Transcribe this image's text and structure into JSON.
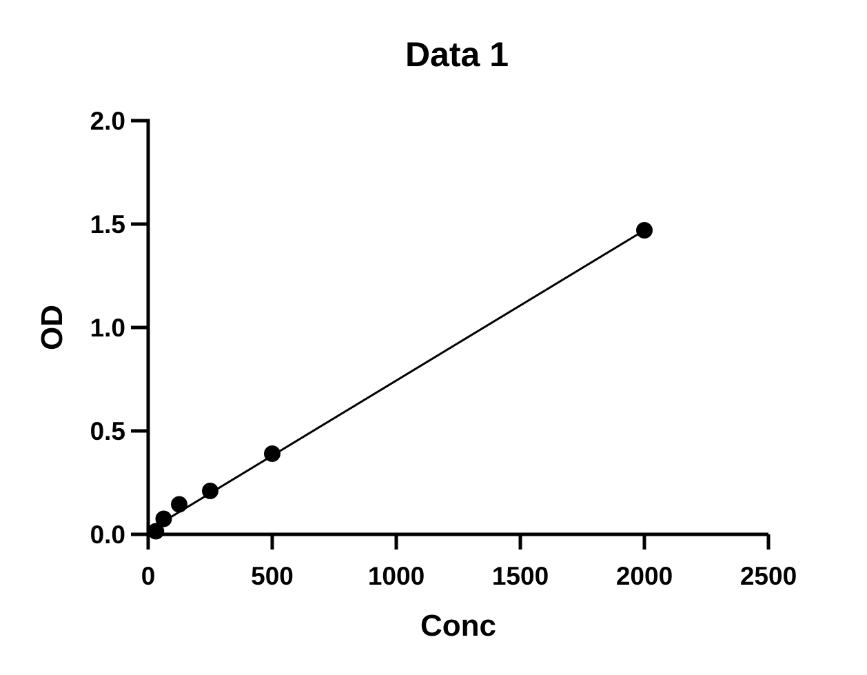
{
  "chart_data": {
    "type": "scatter",
    "title": "Data 1",
    "xlabel": "Conc",
    "ylabel": "OD",
    "xlim": [
      0,
      2500
    ],
    "ylim": [
      0,
      2.0
    ],
    "x_ticks": [
      0,
      500,
      1000,
      1500,
      2000,
      2500
    ],
    "x_tick_labels": [
      "0",
      "500",
      "1000",
      "1500",
      "2000",
      "2500"
    ],
    "y_ticks": [
      0,
      0.5,
      1.0,
      1.5,
      2.0
    ],
    "y_tick_labels": [
      "0.0",
      "0.5",
      "1.0",
      "1.5",
      "2.0"
    ],
    "grid": false,
    "legend": "none",
    "series": [
      {
        "points": [
          {
            "x": 31.25,
            "y": 0.015
          },
          {
            "x": 62.5,
            "y": 0.075
          },
          {
            "x": 125,
            "y": 0.145
          },
          {
            "x": 250,
            "y": 0.21
          },
          {
            "x": 500,
            "y": 0.39
          },
          {
            "x": 2000,
            "y": 1.47
          }
        ],
        "fit_line": {
          "x": [
            31.25,
            2000
          ],
          "y": [
            0.04,
            1.47
          ]
        },
        "marker": "circle",
        "color": "#000000"
      }
    ]
  }
}
